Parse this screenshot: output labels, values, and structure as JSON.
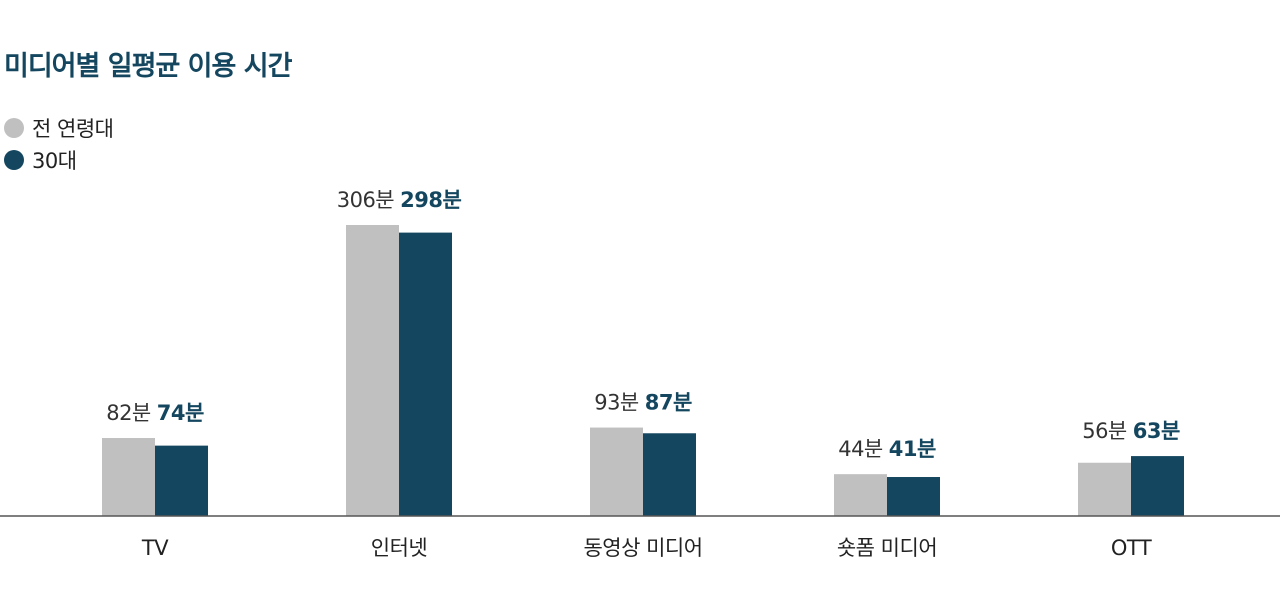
{
  "title": "미디어별 일평균 이용 시간",
  "legend": [
    {
      "label": "전 연령대",
      "color": "#c0c0c0"
    },
    {
      "label": "30대",
      "color": "#14475f"
    }
  ],
  "chart_data": {
    "type": "bar",
    "title": "미디어별 일평균 이용 시간",
    "xlabel": "",
    "ylabel": "",
    "unit": "분",
    "categories": [
      "TV",
      "인터넷",
      "동영상 미디어",
      "숏폼 미디어",
      "OTT"
    ],
    "series": [
      {
        "name": "전 연령대",
        "color": "#c0c0c0",
        "values": [
          82,
          306,
          93,
          44,
          56
        ],
        "labels": [
          "82분",
          "306분",
          "93분",
          "44분",
          "56분"
        ]
      },
      {
        "name": "30대",
        "color": "#14475f",
        "values": [
          74,
          298,
          87,
          41,
          63
        ],
        "labels": [
          "74분",
          "298분",
          "87분",
          "41분",
          "63분"
        ]
      }
    ],
    "ylim": [
      0,
      306
    ],
    "grid": false,
    "legend_position": "top-left"
  }
}
